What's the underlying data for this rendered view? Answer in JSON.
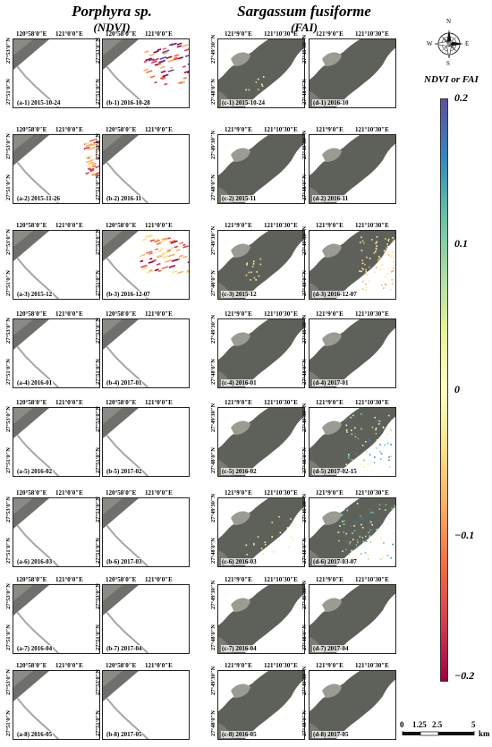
{
  "headers": {
    "porphyra": {
      "title": "Porphyra sp.",
      "subtitle": "(NDVI)"
    },
    "sargassum": {
      "title": "Sargassum fusiforme",
      "subtitle": "(FAI)"
    }
  },
  "axes": {
    "ndvi": {
      "x": [
        "120°58′0″E",
        "121°0′0″E"
      ],
      "y": [
        "27°53′0″N",
        "27°51′0″N"
      ]
    },
    "fai": {
      "x": [
        "121°9′0″E",
        "121°10′30″E"
      ],
      "y": [
        "27°49′30″N",
        "27°48′0″N"
      ]
    }
  },
  "panels": [
    {
      "col": "a",
      "label": "(a-1) 2015-10-24",
      "dots": "a1"
    },
    {
      "col": "b",
      "label": "(b-1) 2016-10-28",
      "dots": "b1"
    },
    {
      "col": "c",
      "label": "(c-1) 2015-10-24",
      "dots": "c1"
    },
    {
      "col": "d",
      "label": "(d-1) 2016-10",
      "dots": ""
    },
    {
      "col": "a",
      "label": "(a-2) 2015-11-26",
      "dots": "a2"
    },
    {
      "col": "b",
      "label": "(b-2) 2016-11",
      "dots": ""
    },
    {
      "col": "c",
      "label": "(c-2) 2015-11",
      "dots": ""
    },
    {
      "col": "d",
      "label": "(d-2) 2016-11",
      "dots": ""
    },
    {
      "col": "a",
      "label": "(a-3) 2015-12",
      "dots": ""
    },
    {
      "col": "b",
      "label": "(b-3) 2016-12-07",
      "dots": "b3"
    },
    {
      "col": "c",
      "label": "(c-3) 2015-12",
      "dots": "c3"
    },
    {
      "col": "d",
      "label": "(d-3) 2016-12-07",
      "dots": "d3"
    },
    {
      "col": "a",
      "label": "(a-4) 2016-01",
      "dots": ""
    },
    {
      "col": "b",
      "label": "(b-4) 2017-01",
      "dots": ""
    },
    {
      "col": "c",
      "label": "(c-4) 2016-01",
      "dots": ""
    },
    {
      "col": "d",
      "label": "(d-4) 2017-01",
      "dots": ""
    },
    {
      "col": "a",
      "label": "(a-5) 2016-02",
      "dots": ""
    },
    {
      "col": "b",
      "label": "(b-5) 2017-02",
      "dots": ""
    },
    {
      "col": "c",
      "label": "(c-5) 2016-02",
      "dots": ""
    },
    {
      "col": "d",
      "label": "(d-5) 2017-02-15",
      "dots": "d5"
    },
    {
      "col": "a",
      "label": "(a-6) 2016-03",
      "dots": ""
    },
    {
      "col": "b",
      "label": "(b-6) 2017-03",
      "dots": ""
    },
    {
      "col": "c",
      "label": "(c-6) 2016-03",
      "dots": "c6"
    },
    {
      "col": "d",
      "label": "(d-6) 2017-03-07",
      "dots": "d6"
    },
    {
      "col": "a",
      "label": "(a-7) 2016-04",
      "dots": ""
    },
    {
      "col": "b",
      "label": "(b-7) 2017-04",
      "dots": ""
    },
    {
      "col": "c",
      "label": "(c-7) 2016-04",
      "dots": ""
    },
    {
      "col": "d",
      "label": "(d-7) 2017-04",
      "dots": ""
    },
    {
      "col": "a",
      "label": "(a-8) 2016-05",
      "dots": ""
    },
    {
      "col": "b",
      "label": "(b-8) 2017-05",
      "dots": ""
    },
    {
      "col": "c",
      "label": "(c-8) 2016-05",
      "dots": ""
    },
    {
      "col": "d",
      "label": "(d-8) 2017-05",
      "dots": ""
    }
  ],
  "north_arrow": {
    "n": "N",
    "s": "S",
    "e": "E",
    "w": "W"
  },
  "colorbar": {
    "label": "NDVI or FAI",
    "ticks": [
      "0.2",
      "0.1",
      "0",
      "−0.1",
      "−0.2"
    ],
    "tick_values": [
      0.2,
      0.1,
      0,
      -0.1,
      -0.2
    ],
    "range": [
      -0.2,
      0.2
    ],
    "colors": [
      "#5e4fa2",
      "#3288bd",
      "#66c2a5",
      "#abdda4",
      "#e6f598",
      "#ffffbf",
      "#fee08b",
      "#fdae61",
      "#f46d43",
      "#d53e4f",
      "#9e0142"
    ]
  },
  "scalebar": {
    "ticks": [
      "0",
      "1.25",
      "2.5",
      "5"
    ],
    "unit": "km"
  }
}
